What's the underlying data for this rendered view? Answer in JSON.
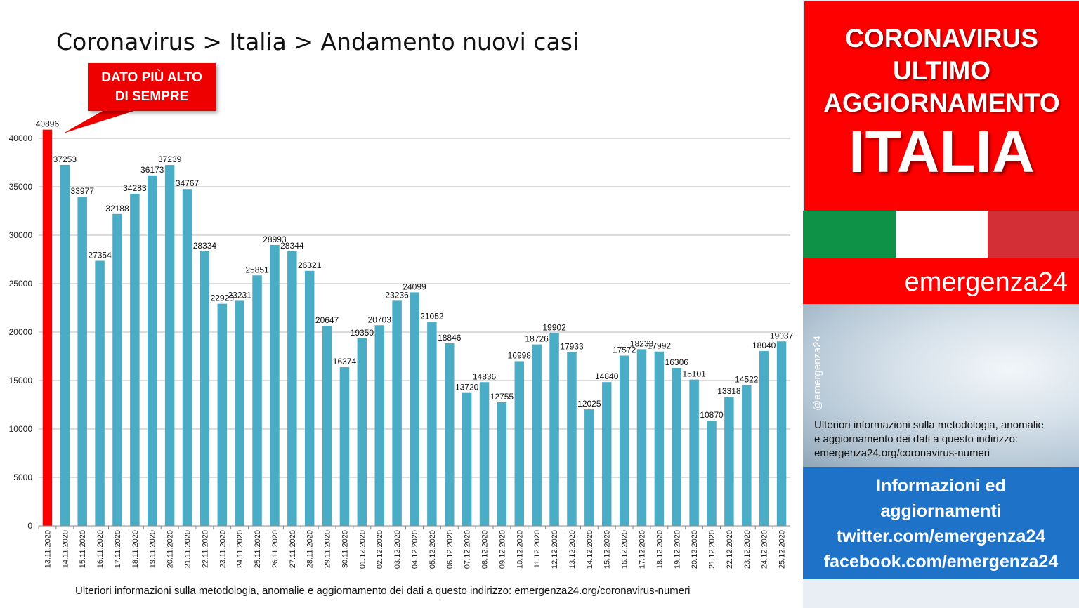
{
  "title": "Coronavirus > Italia > Andamento nuovi casi",
  "callout": {
    "line1": "DATO PIÙ ALTO",
    "line2": "DI SEMPRE"
  },
  "footer_note": "Ulteriori informazioni sulla metodologia, anomalie e aggiornamento dei dati a questo indirizzo: emergenza24.org/coronavirus-numeri",
  "side_panel": {
    "header_line1": "CORONAVIRUS",
    "header_line2": "ULTIMO",
    "header_line3": "AGGIORNAMENTO",
    "header_country": "ITALIA",
    "brand": "emergenza24",
    "handle": "@emergenza24",
    "note_line1": "Ulteriori informazioni sulla metodologia, anomalie",
    "note_line2": "e aggiornamento dei dati a questo indirizzo:",
    "note_line3": "emergenza24.org/coronavirus-numeri",
    "info_line1": "Informazioni ed",
    "info_line2": "aggiornamenti",
    "info_line3": "twitter.com/emergenza24",
    "info_line4": "facebook.com/emergenza24"
  },
  "colors": {
    "bar": "#4bacc6",
    "highlight_bar": "#ff0000",
    "brand_red": "#ff0000",
    "info_blue": "#1e73c9",
    "flag_green": "#0e9247",
    "flag_red": "#d32f37"
  },
  "chart_data": {
    "type": "bar",
    "title": "Coronavirus > Italia > Andamento nuovi casi",
    "xlabel": "",
    "ylabel": "",
    "ylim": [
      0,
      40000
    ],
    "yticks": [
      0,
      5000,
      10000,
      15000,
      20000,
      25000,
      30000,
      35000,
      40000
    ],
    "grid": true,
    "highlight_index": 0,
    "categories": [
      "13.11.2020",
      "14.11.2020",
      "15.11.2020",
      "16.11.2020",
      "17.11.2020",
      "18.11.2020",
      "19.11.2020",
      "20.11.2020",
      "21.11.2020",
      "22.11.2020",
      "23.11.2020",
      "24.11.2020",
      "25.11.2020",
      "26.11.2020",
      "27.11.2020",
      "28.11.2020",
      "29.11.2020",
      "30.11.2020",
      "01.12.2020",
      "02.12.2020",
      "03.12.2020",
      "04.12.2020",
      "05.12.2020",
      "06.12.2020",
      "07.12.2020",
      "08.12.2020",
      "09.12.2020",
      "10.12.2020",
      "11.12.2020",
      "12.12.2020",
      "13.12.2020",
      "14.12.2020",
      "15.12.2020",
      "16.12.2020",
      "17.12.2020",
      "18.12.2020",
      "19.12.2020",
      "20.12.2020",
      "21.12.2020",
      "22.12.2020",
      "23.12.2020",
      "24.12.2020",
      "25.12.2020"
    ],
    "values": [
      40896,
      37253,
      33977,
      27354,
      32188,
      34283,
      36173,
      37239,
      34767,
      28334,
      22925,
      23231,
      25851,
      28993,
      28344,
      26321,
      20647,
      16374,
      19350,
      20703,
      23236,
      24099,
      21052,
      18846,
      13720,
      14836,
      12755,
      16998,
      18726,
      19902,
      17933,
      12025,
      14840,
      17572,
      18233,
      17992,
      16306,
      15101,
      10870,
      13318,
      14522,
      18040,
      19037
    ]
  }
}
